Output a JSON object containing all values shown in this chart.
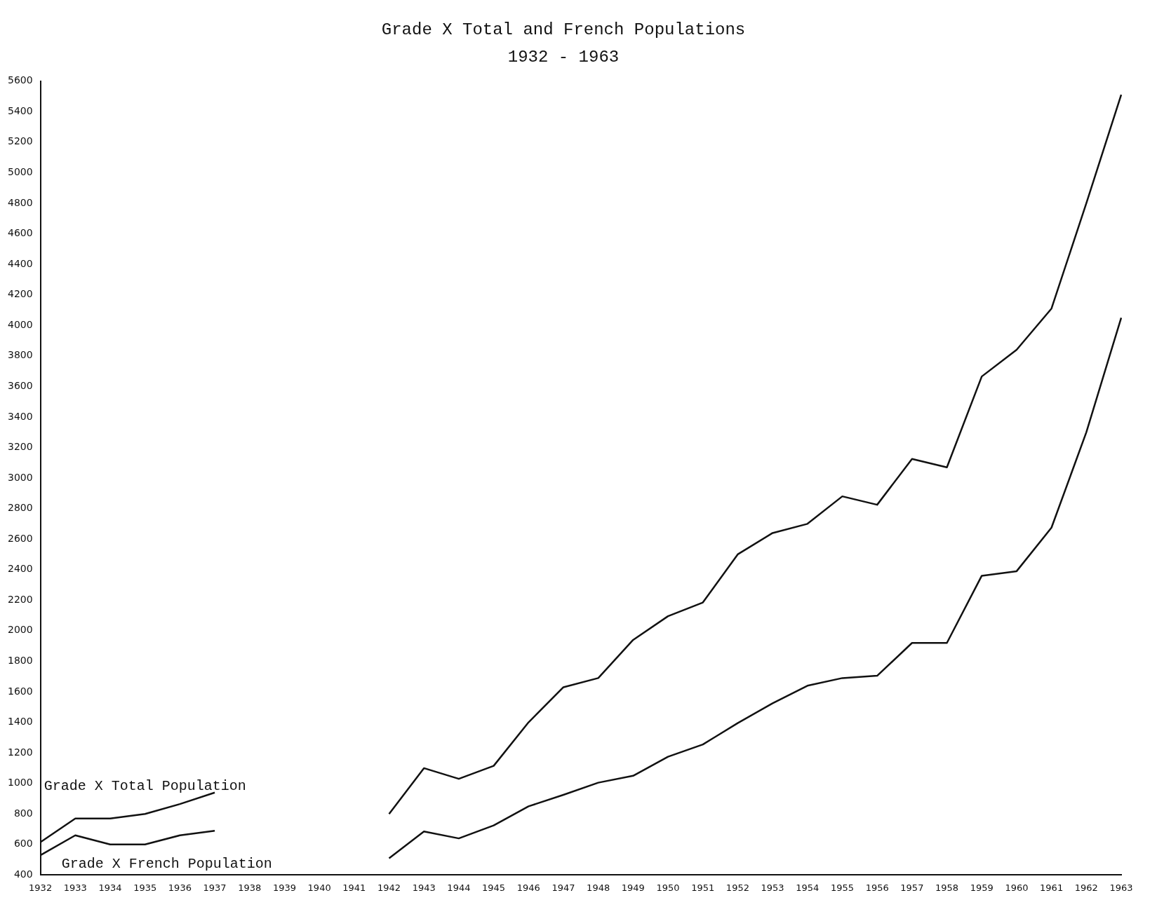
{
  "chart_data": {
    "type": "line",
    "title": "Grade X Total and French Populations",
    "subtitle": "1932 - 1963",
    "categories": [
      "1932",
      "1933",
      "1934",
      "1935",
      "1936",
      "1937",
      "1938",
      "1939",
      "1940",
      "1941",
      "1942",
      "1943",
      "1944",
      "1945",
      "1946",
      "1947",
      "1948",
      "1949",
      "1950",
      "1951",
      "1952",
      "1953",
      "1954",
      "1955",
      "1956",
      "1957",
      "1958",
      "1959",
      "1960",
      "1961",
      "1962",
      "1963"
    ],
    "series": [
      {
        "name": "Grade X Total Population",
        "color": "#111111",
        "values": [
          615,
          770,
          770,
          800,
          865,
          940,
          null,
          null,
          null,
          null,
          800,
          1100,
          1030,
          1115,
          1400,
          1630,
          1690,
          1940,
          2095,
          2185,
          2500,
          2640,
          2700,
          2880,
          2825,
          3125,
          3070,
          3665,
          3840,
          4110,
          4800,
          5510
        ]
      },
      {
        "name": "Grade X French Population",
        "color": "#111111",
        "values": [
          530,
          660,
          600,
          600,
          660,
          690,
          null,
          null,
          null,
          null,
          510,
          685,
          640,
          725,
          850,
          925,
          1005,
          1050,
          1175,
          1255,
          1395,
          1525,
          1640,
          1690,
          1705,
          1920,
          1920,
          2360,
          2390,
          2675,
          3300,
          4050
        ]
      }
    ],
    "ylim": [
      400,
      5600
    ],
    "yticks": [
      400,
      600,
      800,
      1000,
      1200,
      1400,
      1600,
      1800,
      2000,
      2200,
      2400,
      2600,
      2800,
      3000,
      3200,
      3400,
      3600,
      3800,
      4000,
      4200,
      4400,
      4600,
      4800,
      5000,
      5200,
      5400,
      5600
    ],
    "grid": false,
    "legend": false,
    "marker": "none",
    "line_style": "solid"
  }
}
